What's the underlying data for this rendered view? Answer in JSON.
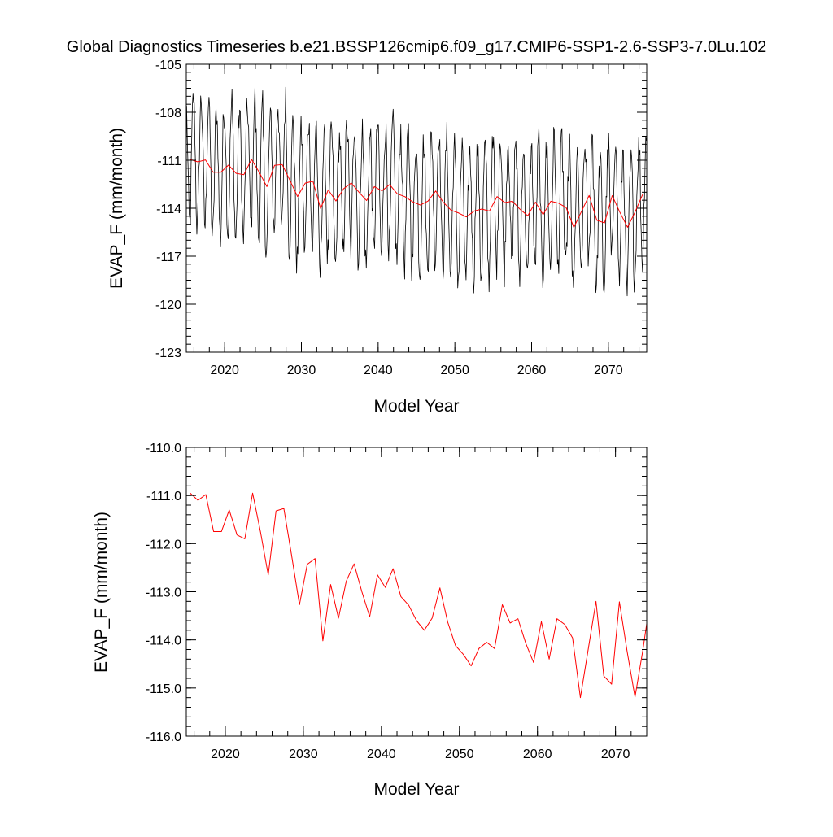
{
  "title": "Global Diagnostics Timeseries b.e21.BSSP126cmip6.f09_g17.CMIP6-SSP1-2.6-SSP3-7.0Lu.102",
  "colors": {
    "monthly": "#000000",
    "annual": "#ff0000",
    "frame": "#000000"
  },
  "chart_data": [
    {
      "type": "line",
      "title": "Global Diagnostics Timeseries b.e21.BSSP126cmip6.f09_g17.CMIP6-SSP1-2.6-SSP3-7.0Lu.102",
      "xlabel": "Model Year",
      "ylabel": "EVAP_F (mm/month)",
      "xlim": [
        2015,
        2075
      ],
      "ylim": [
        -123,
        -105
      ],
      "x_ticks": [
        2020,
        2030,
        2040,
        2050,
        2060,
        2070
      ],
      "x_tick_labels": [
        "2020",
        "2030",
        "2040",
        "2050",
        "2060",
        "2070"
      ],
      "y_ticks": [
        -123,
        -120,
        -117,
        -114,
        -111,
        -108,
        -105
      ],
      "y_tick_labels": [
        "-123",
        "-120",
        "-117",
        "-114",
        "-111",
        "-108",
        "-105"
      ],
      "grid": false,
      "series": [
        {
          "color": "#000000",
          "description_of_values": "monthly values: annual mean plus seasonal cycle",
          "x_start": 2015.04,
          "x_step": 0.0833333,
          "monthly_anomaly_pattern": [
            3.5,
            2.2,
            -0.5,
            -3.0,
            -4.5,
            -4.8,
            -3.8,
            -1.5,
            1.0,
            3.0,
            4.2,
            4.6
          ],
          "base_series": "annual"
        },
        {
          "color": "#ff0000",
          "x": [
            2015.5,
            2016.5,
            2017.5,
            2018.5,
            2019.5,
            2020.5,
            2021.5,
            2022.5,
            2023.5,
            2024.5,
            2025.5,
            2026.5,
            2027.5,
            2028.5,
            2029.5,
            2030.5,
            2031.5,
            2032.5,
            2033.5,
            2034.5,
            2035.5,
            2036.5,
            2037.5,
            2038.5,
            2039.5,
            2040.5,
            2041.5,
            2042.5,
            2043.5,
            2044.5,
            2045.5,
            2046.5,
            2047.5,
            2048.5,
            2049.5,
            2050.5,
            2051.5,
            2052.5,
            2053.5,
            2054.5,
            2055.5,
            2056.5,
            2057.5,
            2058.5,
            2059.5,
            2060.5,
            2061.5,
            2062.5,
            2063.5,
            2064.5,
            2065.5,
            2066.5,
            2067.5,
            2068.5,
            2069.5,
            2070.5,
            2071.5,
            2072.5,
            2073.5,
            2074.5
          ],
          "values": [
            -110.95,
            -111.1,
            -110.98,
            -111.75,
            -111.75,
            -111.3,
            -111.82,
            -111.9,
            -110.95,
            -111.75,
            -112.65,
            -111.32,
            -111.27,
            -112.25,
            -113.27,
            -112.43,
            -112.31,
            -114.02,
            -112.85,
            -113.55,
            -112.78,
            -112.42,
            -113.0,
            -113.52,
            -112.65,
            -112.91,
            -112.52,
            -113.1,
            -113.28,
            -113.6,
            -113.8,
            -113.55,
            -112.92,
            -113.63,
            -114.12,
            -114.3,
            -114.54,
            -114.18,
            -114.05,
            -114.18,
            -113.27,
            -113.65,
            -113.56,
            -114.07,
            -114.47,
            -113.62,
            -114.4,
            -113.56,
            -113.68,
            -113.96,
            -115.2,
            -114.2,
            -113.2,
            -114.75,
            -114.92,
            -113.21,
            -114.25,
            -115.19,
            -114.22,
            -113.1
          ]
        }
      ]
    },
    {
      "type": "line",
      "xlabel": "Model Year",
      "ylabel": "EVAP_F (mm/month)",
      "xlim": [
        2015,
        2074
      ],
      "ylim": [
        -116.0,
        -110.0
      ],
      "x_ticks": [
        2020,
        2030,
        2040,
        2050,
        2060,
        2070
      ],
      "x_tick_labels": [
        "2020",
        "2030",
        "2040",
        "2050",
        "2060",
        "2070"
      ],
      "y_ticks": [
        -116,
        -115,
        -114,
        -113,
        -112,
        -111,
        -110
      ],
      "y_tick_labels": [
        "-116.0",
        "-115.0",
        "-114.0",
        "-113.0",
        "-112.0",
        "-111.0",
        "-110.0"
      ],
      "grid": false,
      "series": [
        {
          "color": "#ff0000",
          "x": [
            2015.5,
            2016.5,
            2017.5,
            2018.5,
            2019.5,
            2020.5,
            2021.5,
            2022.5,
            2023.5,
            2024.5,
            2025.5,
            2026.5,
            2027.5,
            2028.5,
            2029.5,
            2030.5,
            2031.5,
            2032.5,
            2033.5,
            2034.5,
            2035.5,
            2036.5,
            2037.5,
            2038.5,
            2039.5,
            2040.5,
            2041.5,
            2042.5,
            2043.5,
            2044.5,
            2045.5,
            2046.5,
            2047.5,
            2048.5,
            2049.5,
            2050.5,
            2051.5,
            2052.5,
            2053.5,
            2054.5,
            2055.5,
            2056.5,
            2057.5,
            2058.5,
            2059.5,
            2060.5,
            2061.5,
            2062.5,
            2063.5,
            2064.5,
            2065.5,
            2066.5,
            2067.5,
            2068.5,
            2069.5,
            2070.5,
            2071.5,
            2072.5,
            2073.5,
            2074.5
          ],
          "values": [
            -110.95,
            -111.1,
            -110.98,
            -111.75,
            -111.75,
            -111.3,
            -111.82,
            -111.9,
            -110.95,
            -111.75,
            -112.65,
            -111.32,
            -111.27,
            -112.25,
            -113.27,
            -112.43,
            -112.31,
            -114.02,
            -112.85,
            -113.55,
            -112.78,
            -112.42,
            -113.0,
            -113.52,
            -112.65,
            -112.91,
            -112.52,
            -113.1,
            -113.28,
            -113.6,
            -113.8,
            -113.55,
            -112.92,
            -113.63,
            -114.12,
            -114.3,
            -114.54,
            -114.18,
            -114.05,
            -114.18,
            -113.27,
            -113.65,
            -113.56,
            -114.07,
            -114.47,
            -113.62,
            -114.4,
            -113.56,
            -113.68,
            -113.96,
            -115.2,
            -114.2,
            -113.2,
            -114.75,
            -114.92,
            -113.21,
            -114.25,
            -115.19,
            -114.22,
            -113.1
          ]
        }
      ]
    }
  ]
}
